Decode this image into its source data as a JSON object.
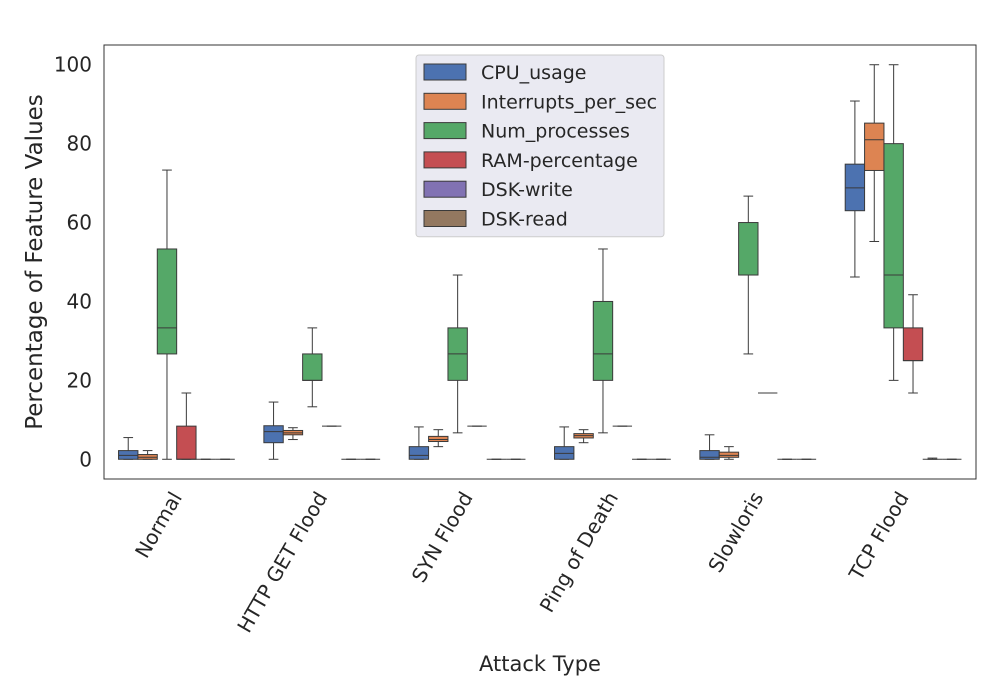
{
  "chart_data": {
    "type": "box",
    "xlabel": "Attack Type",
    "ylabel": "Percentage of Feature Values",
    "ylim": [
      -5,
      105
    ],
    "yticks": [
      0,
      20,
      40,
      60,
      80,
      100
    ],
    "grid": false,
    "legend_position": "top-center",
    "categories": [
      "Normal",
      "HTTP GET Flood",
      "SYN Flood",
      "Ping of Death",
      "Slowloris",
      "TCP Flood"
    ],
    "series": [
      {
        "name": "CPU_usage",
        "color": "#4c72b0",
        "boxes": [
          {
            "whislo": 0,
            "q1": 0,
            "med": 1,
            "q3": 2.2,
            "whishi": 5.5
          },
          {
            "whislo": 0,
            "q1": 4.2,
            "med": 7,
            "q3": 8.5,
            "whishi": 14.5
          },
          {
            "whislo": 0,
            "q1": 0,
            "med": 1,
            "q3": 3.2,
            "whishi": 8.2
          },
          {
            "whislo": 0,
            "q1": 0,
            "med": 1.5,
            "q3": 3.2,
            "whishi": 8.2
          },
          {
            "whislo": 0,
            "q1": 0,
            "med": 0.5,
            "q3": 2.2,
            "whishi": 6.2
          },
          {
            "whislo": 46.2,
            "q1": 63,
            "med": 68.8,
            "q3": 74.8,
            "whishi": 90.8
          }
        ]
      },
      {
        "name": "Interrupts_per_sec",
        "color": "#dd8452",
        "boxes": [
          {
            "whislo": 0,
            "q1": 0,
            "med": 0.5,
            "q3": 1.2,
            "whishi": 2.2
          },
          {
            "whislo": 5,
            "q1": 6.2,
            "med": 6.7,
            "q3": 7.3,
            "whishi": 8
          },
          {
            "whislo": 3.2,
            "q1": 4.5,
            "med": 5,
            "q3": 5.8,
            "whishi": 7.5
          },
          {
            "whislo": 4.2,
            "q1": 5.4,
            "med": 6,
            "q3": 6.5,
            "whishi": 7.5
          },
          {
            "whislo": 0,
            "q1": 0.5,
            "med": 1,
            "q3": 1.8,
            "whishi": 3.2
          },
          {
            "whislo": 55.2,
            "q1": 73.2,
            "med": 81,
            "q3": 85.2,
            "whishi": 100
          }
        ]
      },
      {
        "name": "Num_processes",
        "color": "#55a868",
        "boxes": [
          {
            "whislo": 0,
            "q1": 26.7,
            "med": 33.3,
            "q3": 53.3,
            "whishi": 73.3
          },
          {
            "whislo": 13.3,
            "q1": 20,
            "med": 20,
            "q3": 26.7,
            "whishi": 33.3
          },
          {
            "whislo": 6.7,
            "q1": 20,
            "med": 26.7,
            "q3": 33.3,
            "whishi": 46.7
          },
          {
            "whislo": 6.7,
            "q1": 20,
            "med": 26.7,
            "q3": 40,
            "whishi": 53.3
          },
          {
            "whislo": 26.7,
            "q1": 46.7,
            "med": 46.7,
            "q3": 60,
            "whishi": 66.7
          },
          {
            "whislo": 20,
            "q1": 33.3,
            "med": 46.7,
            "q3": 80,
            "whishi": 100
          }
        ]
      },
      {
        "name": "RAM-percentage",
        "color": "#c44e52",
        "boxes": [
          {
            "whislo": 0,
            "q1": 0,
            "med": 0,
            "q3": 8.4,
            "whishi": 16.8
          },
          {
            "whislo": 8.4,
            "q1": 8.4,
            "med": 8.4,
            "q3": 8.4,
            "whishi": 8.4
          },
          {
            "whislo": 8.4,
            "q1": 8.4,
            "med": 8.4,
            "q3": 8.4,
            "whishi": 8.4
          },
          {
            "whislo": 8.4,
            "q1": 8.4,
            "med": 8.4,
            "q3": 8.4,
            "whishi": 8.4
          },
          {
            "whislo": 16.8,
            "q1": 16.8,
            "med": 16.8,
            "q3": 16.8,
            "whishi": 16.8
          },
          {
            "whislo": 16.8,
            "q1": 25,
            "med": 25,
            "q3": 33.3,
            "whishi": 41.7
          }
        ]
      },
      {
        "name": "DSK-write",
        "color": "#8172b3",
        "boxes": [
          {
            "whislo": 0,
            "q1": 0,
            "med": 0,
            "q3": 0,
            "whishi": 0
          },
          {
            "whislo": 0,
            "q1": 0,
            "med": 0,
            "q3": 0,
            "whishi": 0
          },
          {
            "whislo": 0,
            "q1": 0,
            "med": 0,
            "q3": 0,
            "whishi": 0
          },
          {
            "whislo": 0,
            "q1": 0,
            "med": 0,
            "q3": 0,
            "whishi": 0
          },
          {
            "whislo": 0,
            "q1": 0,
            "med": 0,
            "q3": 0,
            "whishi": 0
          },
          {
            "whislo": 0,
            "q1": 0,
            "med": 0,
            "q3": 0,
            "whishi": 0.3
          }
        ]
      },
      {
        "name": "DSK-read",
        "color": "#937860",
        "boxes": [
          {
            "whislo": 0,
            "q1": 0,
            "med": 0,
            "q3": 0,
            "whishi": 0
          },
          {
            "whislo": 0,
            "q1": 0,
            "med": 0,
            "q3": 0,
            "whishi": 0
          },
          {
            "whislo": 0,
            "q1": 0,
            "med": 0,
            "q3": 0,
            "whishi": 0
          },
          {
            "whislo": 0,
            "q1": 0,
            "med": 0,
            "q3": 0,
            "whishi": 0
          },
          {
            "whislo": 0,
            "q1": 0,
            "med": 0,
            "q3": 0,
            "whishi": 0
          },
          {
            "whislo": 0,
            "q1": 0,
            "med": 0,
            "q3": 0,
            "whishi": 0
          }
        ]
      }
    ]
  }
}
